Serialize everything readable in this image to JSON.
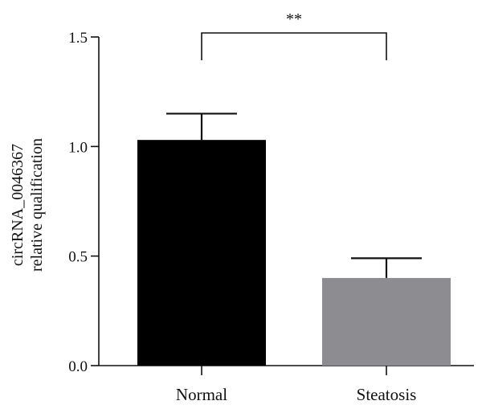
{
  "chart_data": {
    "type": "bar",
    "categories": [
      "Normal",
      "Steatosis"
    ],
    "values": [
      1.03,
      0.4
    ],
    "errors": [
      0.12,
      0.09
    ],
    "colors": [
      "#000000",
      "#8d8c91"
    ],
    "ylabel_lines": [
      "circRNA_0046367",
      "relative qualification"
    ],
    "xlabel": "",
    "ylim": [
      0,
      1.5
    ],
    "yticks": [
      0.0,
      0.5,
      1.0,
      1.5
    ],
    "ytick_labels": [
      "0.0",
      "0.5",
      "1.0",
      "1.5"
    ],
    "grid": false,
    "legend": "none",
    "annotations": [
      {
        "type": "significance-bracket",
        "from": "Normal",
        "to": "Steatosis",
        "label": "**"
      }
    ]
  }
}
